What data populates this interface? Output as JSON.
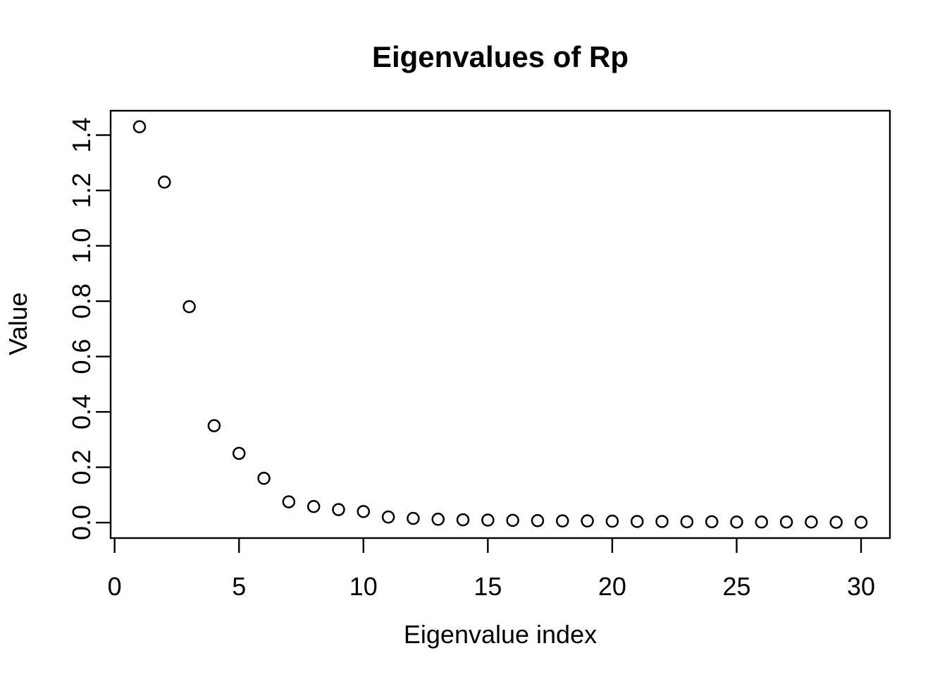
{
  "page": {
    "background_color": "#ffffff",
    "foreground_color": "#000000"
  },
  "chart_data": {
    "type": "scatter",
    "title": "Eigenvalues of Rp",
    "xlabel": "Eigenvalue index",
    "ylabel": "Value",
    "marker": "open-circle",
    "marker_color": "#000000",
    "grid": false,
    "x": [
      1,
      2,
      3,
      4,
      5,
      6,
      7,
      8,
      9,
      10,
      11,
      12,
      13,
      14,
      15,
      16,
      17,
      18,
      19,
      20,
      21,
      22,
      23,
      24,
      25,
      26,
      27,
      28,
      29,
      30
    ],
    "values": [
      1.43,
      1.23,
      0.78,
      0.35,
      0.25,
      0.16,
      0.075,
      0.058,
      0.047,
      0.04,
      0.02,
      0.015,
      0.012,
      0.01,
      0.009,
      0.008,
      0.007,
      0.006,
      0.006,
      0.005,
      0.004,
      0.004,
      0.003,
      0.003,
      0.002,
      0.002,
      0.002,
      0.002,
      0.001,
      0.001
    ],
    "xlim": [
      -0.16,
      31.16
    ],
    "ylim": [
      -0.056,
      1.488
    ],
    "xticks": {
      "values": [
        0,
        5,
        10,
        15,
        20,
        25,
        30
      ],
      "labels": [
        "0",
        "5",
        "10",
        "15",
        "20",
        "25",
        "30"
      ]
    },
    "yticks": {
      "values": [
        0.0,
        0.2,
        0.4,
        0.6,
        0.8,
        1.0,
        1.2,
        1.4
      ],
      "labels": [
        "0.0",
        "0.2",
        "0.4",
        "0.6",
        "0.8",
        "1.0",
        "1.2",
        "1.4"
      ]
    }
  }
}
